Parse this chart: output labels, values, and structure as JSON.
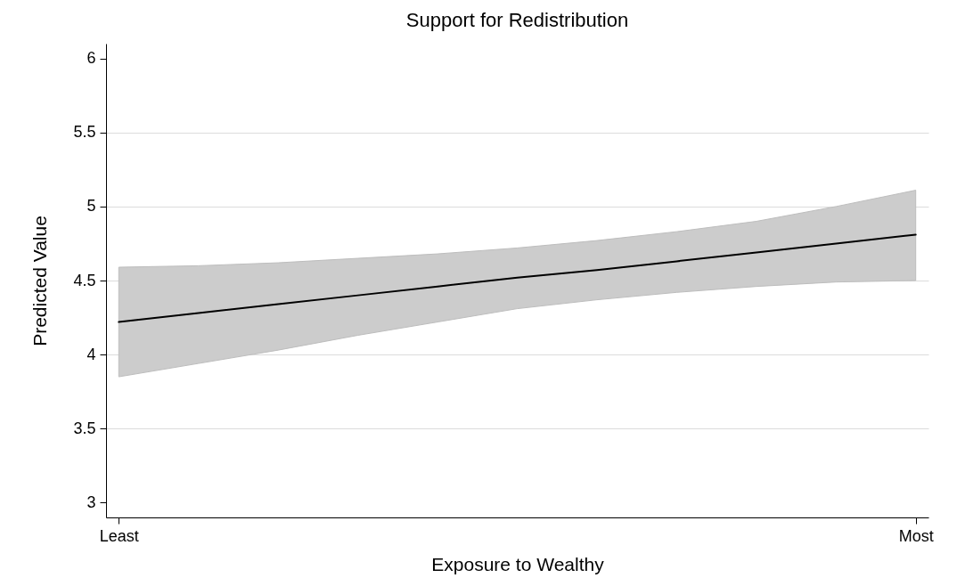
{
  "chart_data": {
    "type": "line",
    "title": "Support for Redistribution",
    "xlabel": "Exposure to Wealthy",
    "ylabel": "Predicted Value",
    "categories": [
      "Least",
      null,
      null,
      null,
      null,
      null,
      null,
      null,
      null,
      null,
      "Most"
    ],
    "ylim": [
      2.9,
      6.1
    ],
    "yticks": [
      3,
      3.5,
      4,
      4.5,
      5,
      5.5,
      6
    ],
    "grid": "y",
    "series": [
      {
        "color": "#000000",
        "values": [
          4.22,
          4.28,
          4.34,
          4.4,
          4.46,
          4.52,
          4.57,
          4.63,
          4.69,
          4.75,
          4.81
        ],
        "lower": [
          3.85,
          3.94,
          4.03,
          4.13,
          4.22,
          4.31,
          4.37,
          4.42,
          4.46,
          4.49,
          4.5
        ],
        "upper": [
          4.59,
          4.6,
          4.62,
          4.65,
          4.68,
          4.72,
          4.77,
          4.83,
          4.9,
          5.0,
          5.11
        ]
      }
    ]
  }
}
